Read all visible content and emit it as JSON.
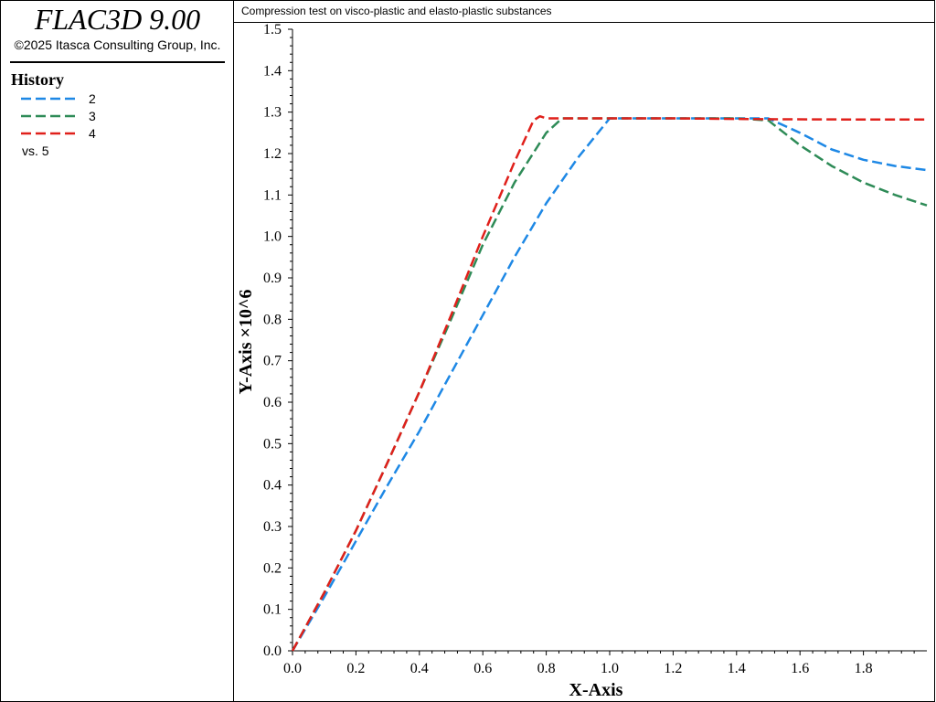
{
  "app": {
    "title": "FLAC3D 9.00",
    "copyright": "©2025 Itasca Consulting Group, Inc."
  },
  "sidebar": {
    "heading": "History",
    "legend": [
      {
        "label": "2",
        "color": "#1e88e5"
      },
      {
        "label": "3",
        "color": "#2e8b57"
      },
      {
        "label": "4",
        "color": "#e0201b"
      }
    ],
    "vs_label": "vs. 5"
  },
  "plot": {
    "title": "Compression test on visco-plastic and elasto-plastic substances"
  },
  "chart_data": {
    "type": "line",
    "title": "Compression test on visco-plastic and elasto-plastic substances",
    "xlabel": "X-Axis",
    "ylabel": "Y-Axis ×10^6",
    "xlim": [
      0,
      2.0
    ],
    "ylim": [
      0,
      1.5
    ],
    "xticks": [
      0.0,
      0.2,
      0.4,
      0.6,
      0.8,
      1.0,
      1.2,
      1.4,
      1.6,
      1.8
    ],
    "yticks": [
      0.0,
      0.1,
      0.2,
      0.3,
      0.4,
      0.5,
      0.6,
      0.7,
      0.8,
      0.9,
      1.0,
      1.1,
      1.2,
      1.3,
      1.4,
      1.5
    ],
    "grid": false,
    "legend_position": "sidebar",
    "series": [
      {
        "name": "2",
        "color": "#1e88e5",
        "points": [
          [
            0.0,
            0.0
          ],
          [
            0.1,
            0.13
          ],
          [
            0.2,
            0.265
          ],
          [
            0.3,
            0.4
          ],
          [
            0.4,
            0.53
          ],
          [
            0.5,
            0.67
          ],
          [
            0.6,
            0.81
          ],
          [
            0.7,
            0.95
          ],
          [
            0.8,
            1.08
          ],
          [
            0.9,
            1.19
          ],
          [
            1.0,
            1.285
          ],
          [
            1.2,
            1.285
          ],
          [
            1.4,
            1.285
          ],
          [
            1.5,
            1.285
          ],
          [
            1.6,
            1.25
          ],
          [
            1.7,
            1.21
          ],
          [
            1.8,
            1.185
          ],
          [
            1.9,
            1.17
          ],
          [
            2.0,
            1.16
          ]
        ]
      },
      {
        "name": "3",
        "color": "#2e8b57",
        "points": [
          [
            0.0,
            0.0
          ],
          [
            0.1,
            0.14
          ],
          [
            0.2,
            0.29
          ],
          [
            0.3,
            0.455
          ],
          [
            0.4,
            0.625
          ],
          [
            0.5,
            0.8
          ],
          [
            0.6,
            0.98
          ],
          [
            0.7,
            1.13
          ],
          [
            0.8,
            1.25
          ],
          [
            0.85,
            1.285
          ],
          [
            1.0,
            1.285
          ],
          [
            1.2,
            1.285
          ],
          [
            1.4,
            1.285
          ],
          [
            1.5,
            1.28
          ],
          [
            1.6,
            1.22
          ],
          [
            1.7,
            1.17
          ],
          [
            1.8,
            1.13
          ],
          [
            1.9,
            1.1
          ],
          [
            2.0,
            1.075
          ]
        ]
      },
      {
        "name": "4",
        "color": "#e0201b",
        "points": [
          [
            0.0,
            0.0
          ],
          [
            0.1,
            0.14
          ],
          [
            0.2,
            0.29
          ],
          [
            0.3,
            0.455
          ],
          [
            0.4,
            0.625
          ],
          [
            0.5,
            0.81
          ],
          [
            0.6,
            1.0
          ],
          [
            0.7,
            1.18
          ],
          [
            0.76,
            1.28
          ],
          [
            0.78,
            1.29
          ],
          [
            0.8,
            1.285
          ],
          [
            1.0,
            1.285
          ],
          [
            1.2,
            1.285
          ],
          [
            1.5,
            1.283
          ],
          [
            1.8,
            1.282
          ],
          [
            2.0,
            1.282
          ]
        ]
      }
    ]
  }
}
